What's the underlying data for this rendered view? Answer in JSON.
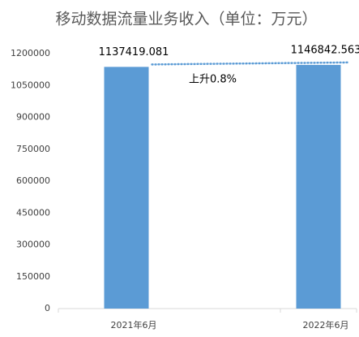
{
  "chart_data": {
    "type": "bar",
    "title": "移动数据流量业务收入（单位：万元）",
    "categories": [
      "2021年6月",
      "2022年6月"
    ],
    "values": [
      1137419.081,
      1146842.563
    ],
    "color": "#5b9bd5",
    "ylim": [
      0,
      1200000
    ],
    "yticks": [
      0,
      150000,
      300000,
      450000,
      600000,
      750000,
      900000,
      1050000,
      1200000
    ],
    "grid": false,
    "annotation": "上升0.8%",
    "trendline": true
  }
}
